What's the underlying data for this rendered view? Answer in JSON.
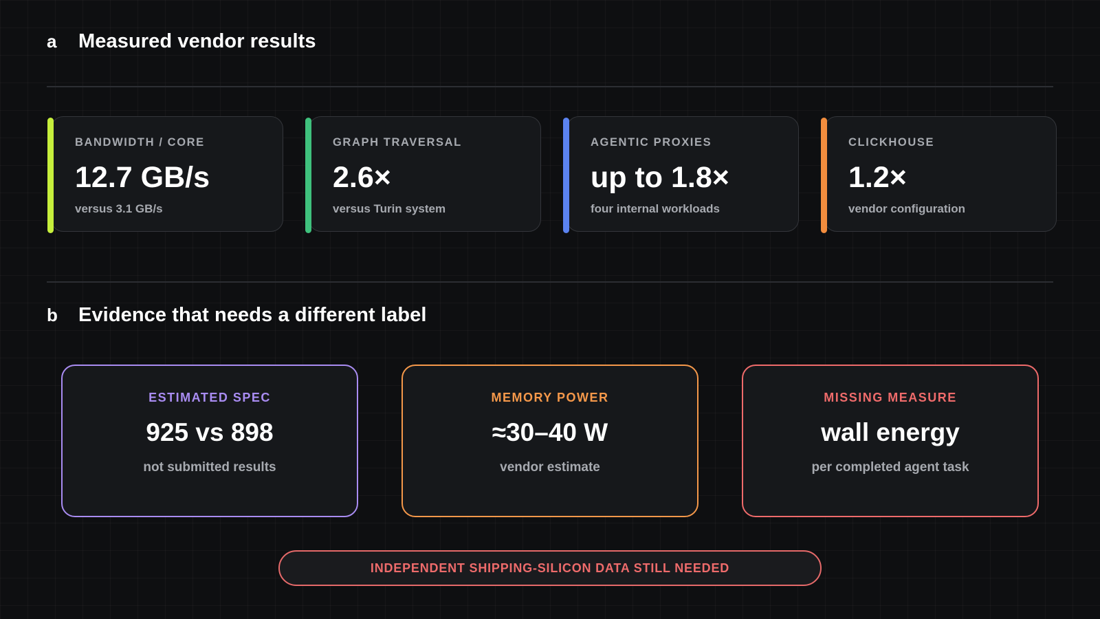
{
  "section_a": {
    "letter": "a",
    "title": "Measured vendor results"
  },
  "metrics": [
    {
      "label": "BANDWIDTH / CORE",
      "value": "12.7 GB/s",
      "sub": "versus 3.1 GB/s",
      "accent": "#c6ef3c"
    },
    {
      "label": "GRAPH TRAVERSAL",
      "value": "2.6×",
      "sub": "versus Turin system",
      "accent": "#3fc17d"
    },
    {
      "label": "AGENTIC PROXIES",
      "value": "up to 1.8×",
      "sub": "four internal workloads",
      "accent": "#5b83f0"
    },
    {
      "label": "CLICKHOUSE",
      "value": "1.2×",
      "sub": "vendor configuration",
      "accent": "#f28d3e"
    }
  ],
  "section_b": {
    "letter": "b",
    "title": "Evidence that needs a different label"
  },
  "evidence": [
    {
      "label": "ESTIMATED SPEC",
      "value": "925 vs 898",
      "sub": "not submitted results",
      "color": "#a98cf2"
    },
    {
      "label": "MEMORY POWER",
      "value": "≈30–40 W",
      "sub": "vendor estimate",
      "color": "#f5984a"
    },
    {
      "label": "MISSING MEASURE",
      "value": "wall energy",
      "sub": "per completed agent task",
      "color": "#ef6b6b"
    }
  ],
  "banner": {
    "text": "INDEPENDENT SHIPPING-SILICON DATA STILL NEEDED",
    "color": "#ef6b6b"
  }
}
